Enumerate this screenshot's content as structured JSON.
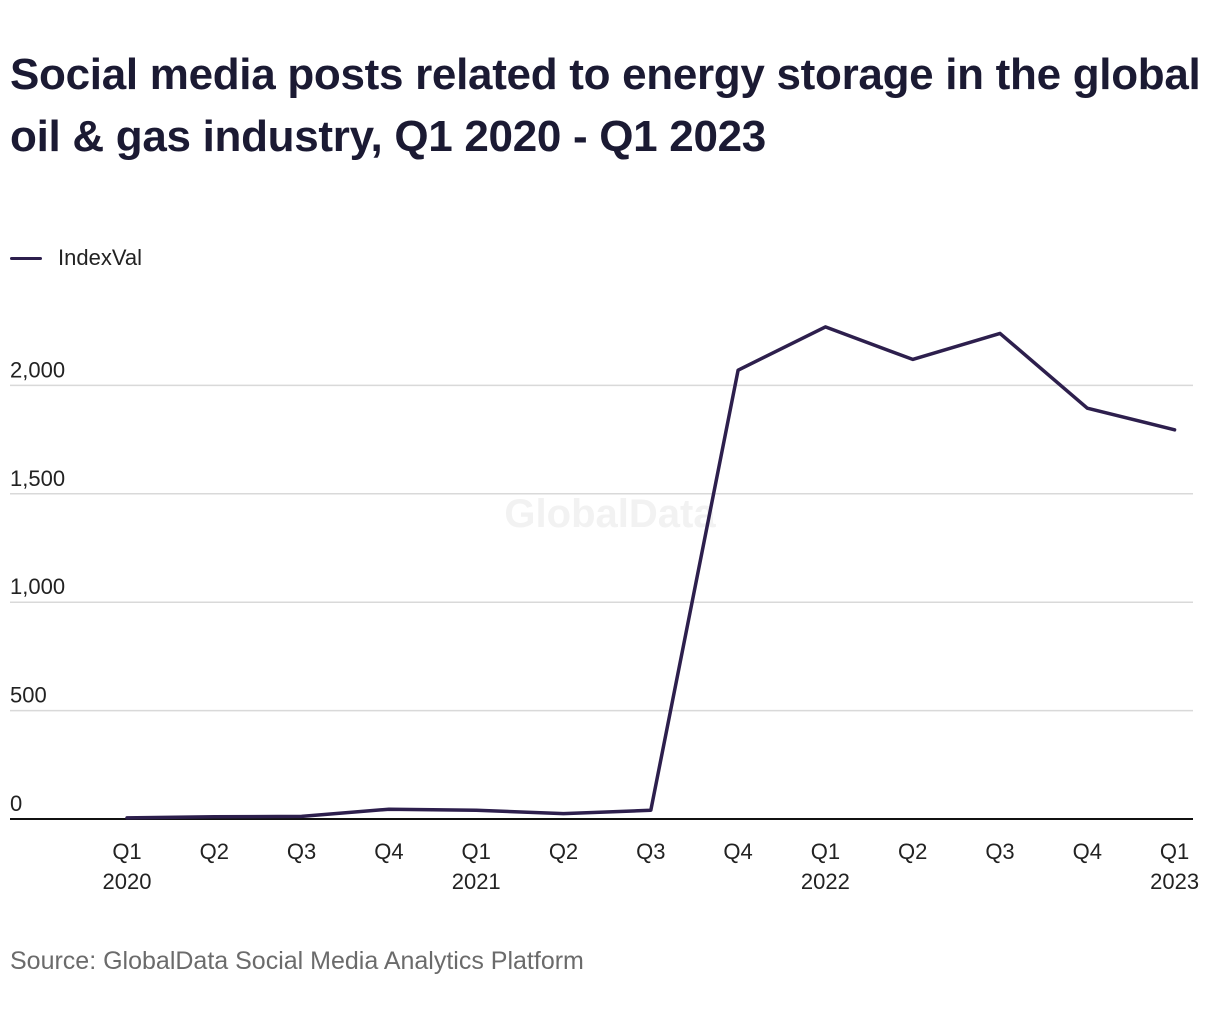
{
  "title": "Social media posts related to energy storage in the global oil & gas industry, Q1 2020 - Q1 2023",
  "legend_label": "IndexVal",
  "watermark": "GlobalData",
  "source": "Source: GlobalData Social Media Analytics Platform",
  "colors": {
    "line": "#2d1f4d",
    "grid": "#d9d9d9",
    "axis": "#111111",
    "tick_text": "#222222",
    "watermark": "#f2f2f2"
  },
  "chart_data": {
    "type": "line",
    "title": "Social media posts related to energy storage in the global oil & gas industry, Q1 2020 - Q1 2023",
    "xlabel": "",
    "ylabel": "",
    "categories": [
      [
        "Q1",
        "2020"
      ],
      [
        "Q2",
        ""
      ],
      [
        "Q3",
        ""
      ],
      [
        "Q4",
        ""
      ],
      [
        "Q1",
        "2021"
      ],
      [
        "Q2",
        ""
      ],
      [
        "Q3",
        ""
      ],
      [
        "Q4",
        ""
      ],
      [
        "Q1",
        "2022"
      ],
      [
        "Q2",
        ""
      ],
      [
        "Q3",
        ""
      ],
      [
        "Q4",
        ""
      ],
      [
        "Q1",
        "2023"
      ]
    ],
    "series": [
      {
        "name": "IndexVal",
        "values": [
          5,
          10,
          12,
          45,
          40,
          25,
          40,
          2070,
          2270,
          2120,
          2240,
          1895,
          1795
        ]
      }
    ],
    "ylim": [
      0,
      2300
    ],
    "yticks": [
      0,
      500,
      1000,
      1500,
      2000
    ],
    "ytick_labels": [
      "0",
      "500",
      "1,000",
      "1,500",
      "2,000"
    ],
    "grid": true,
    "legend_position": "top-left"
  }
}
